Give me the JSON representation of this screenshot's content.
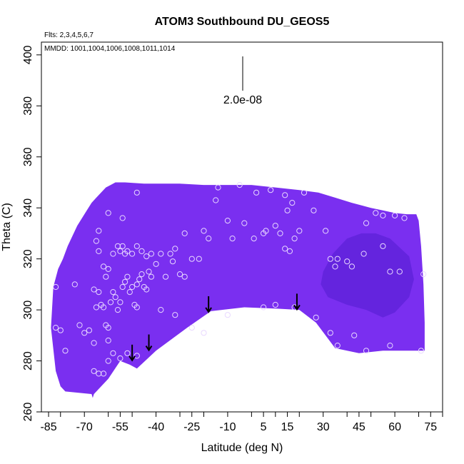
{
  "chart_data": {
    "type": "heatmap",
    "title": "ATOM3 Southbound DU_GEOS5",
    "flights_note": "Flts: 2,3,4,5,6,7",
    "dates_note": "MMDD: 1001,1004,1006,1008,1011,1014",
    "xlabel": "Latitude (deg N)",
    "ylabel": "Theta (C)",
    "xlim": [
      -88,
      80
    ],
    "ylim": [
      260,
      405
    ],
    "x_ticks": [
      -85,
      -70,
      -55,
      -40,
      -25,
      -10,
      5,
      15,
      30,
      45,
      60,
      75
    ],
    "y_ticks": [
      260,
      280,
      300,
      320,
      340,
      360,
      380,
      400
    ],
    "scale_bar_label": "2.0e-08",
    "grid": false,
    "colors": {
      "field_main": "#7a2ff0",
      "field_dark": "#5e22d8",
      "field_light": "#8a3ff5",
      "sample_marker": "#e8d8ff",
      "axis": "#000000"
    },
    "field_region": {
      "top": [
        [
          -83,
          309
        ],
        [
          -81,
          316
        ],
        [
          -79,
          320
        ],
        [
          -77,
          325
        ],
        [
          -75,
          329
        ],
        [
          -73,
          333
        ],
        [
          -71,
          336
        ],
        [
          -69,
          339
        ],
        [
          -67,
          342
        ],
        [
          -65,
          344
        ],
        [
          -63,
          346
        ],
        [
          -61,
          348
        ],
        [
          -59,
          349
        ],
        [
          -57,
          350
        ],
        [
          -53,
          350
        ],
        [
          -45,
          349.5
        ],
        [
          -30,
          349.5
        ],
        [
          -20,
          349
        ],
        [
          0,
          349
        ],
        [
          10,
          348
        ],
        [
          20,
          347
        ],
        [
          28,
          346
        ],
        [
          35,
          344
        ],
        [
          42,
          342
        ],
        [
          50,
          340
        ],
        [
          55,
          339
        ],
        [
          60,
          338
        ],
        [
          65,
          337.5
        ],
        [
          69,
          337.5
        ],
        [
          70,
          335
        ],
        [
          71,
          325
        ],
        [
          72,
          310
        ],
        [
          72.5,
          295
        ],
        [
          72.5,
          284
        ]
      ],
      "bottom": [
        [
          72.5,
          284
        ],
        [
          55,
          284
        ],
        [
          45,
          283
        ],
        [
          35,
          285
        ],
        [
          27,
          295
        ],
        [
          20,
          300
        ],
        [
          10,
          300.5
        ],
        [
          -3,
          301
        ],
        [
          -17,
          299.5
        ],
        [
          -27,
          293
        ],
        [
          -40,
          284
        ],
        [
          -48,
          277
        ],
        [
          -51,
          278.5
        ],
        [
          -55,
          280
        ],
        [
          -60,
          273
        ],
        [
          -66,
          267
        ],
        [
          -66.5,
          265.5
        ],
        [
          -67,
          267
        ],
        [
          -78,
          268
        ],
        [
          -80,
          270
        ],
        [
          -82,
          276
        ],
        [
          -84,
          293
        ],
        [
          -83,
          309
        ]
      ]
    },
    "dark_patch": [
      [
        30,
        315
      ],
      [
        34,
        322
      ],
      [
        40,
        328
      ],
      [
        46,
        330
      ],
      [
        52,
        330
      ],
      [
        58,
        328
      ],
      [
        66,
        321
      ],
      [
        68,
        312
      ],
      [
        66,
        305
      ],
      [
        60,
        299
      ],
      [
        55,
        297
      ],
      [
        48,
        300
      ],
      [
        40,
        302
      ],
      [
        32,
        305
      ],
      [
        29,
        310
      ]
    ],
    "samples": [
      [
        -82,
        293
      ],
      [
        -80,
        292
      ],
      [
        -78,
        284
      ],
      [
        -82,
        309
      ],
      [
        -74,
        310
      ],
      [
        -72,
        294
      ],
      [
        -70,
        291
      ],
      [
        -68,
        292
      ],
      [
        -66,
        287
      ],
      [
        -66,
        276
      ],
      [
        -64,
        275
      ],
      [
        -62,
        275
      ],
      [
        -60,
        280
      ],
      [
        -60,
        288
      ],
      [
        -58,
        283
      ],
      [
        -55,
        281
      ],
      [
        -52,
        283
      ],
      [
        -48,
        282
      ],
      [
        -66,
        308
      ],
      [
        -65,
        301
      ],
      [
        -64,
        307
      ],
      [
        -63,
        302
      ],
      [
        -62,
        301
      ],
      [
        -61,
        294
      ],
      [
        -60,
        293
      ],
      [
        -59,
        303
      ],
      [
        -58,
        307
      ],
      [
        -57,
        305
      ],
      [
        -56,
        300
      ],
      [
        -55,
        303
      ],
      [
        -54,
        309
      ],
      [
        -53,
        311
      ],
      [
        -52,
        313
      ],
      [
        -51,
        307
      ],
      [
        -50,
        309
      ],
      [
        -49,
        302
      ],
      [
        -48,
        310
      ],
      [
        -47,
        312
      ],
      [
        -46,
        314
      ],
      [
        -45,
        309
      ],
      [
        -44,
        308
      ],
      [
        -43,
        315
      ],
      [
        -42,
        313
      ],
      [
        -40,
        318
      ],
      [
        -38,
        322
      ],
      [
        -36,
        313
      ],
      [
        -34,
        322
      ],
      [
        -33,
        319
      ],
      [
        -32,
        324
      ],
      [
        -30,
        314
      ],
      [
        -28,
        313
      ],
      [
        -65,
        327
      ],
      [
        -64,
        323
      ],
      [
        -62,
        317
      ],
      [
        -61,
        313
      ],
      [
        -60,
        316
      ],
      [
        -58,
        322
      ],
      [
        -56,
        325
      ],
      [
        -55,
        323
      ],
      [
        -54,
        325
      ],
      [
        -53,
        322
      ],
      [
        -52,
        323
      ],
      [
        -50,
        322
      ],
      [
        -48,
        325
      ],
      [
        -46,
        323
      ],
      [
        -44,
        321
      ],
      [
        -42,
        322
      ],
      [
        -64,
        331
      ],
      [
        -60,
        338
      ],
      [
        -54,
        336
      ],
      [
        -48,
        346
      ],
      [
        -28,
        330
      ],
      [
        -25,
        320
      ],
      [
        -22,
        320
      ],
      [
        -20,
        331
      ],
      [
        -18,
        328
      ],
      [
        -15,
        343
      ],
      [
        -14,
        348
      ],
      [
        -10,
        335
      ],
      [
        -8,
        328
      ],
      [
        -5,
        349
      ],
      [
        -3,
        334
      ],
      [
        1,
        328
      ],
      [
        2,
        346
      ],
      [
        5,
        330
      ],
      [
        6,
        331
      ],
      [
        8,
        347
      ],
      [
        10,
        333
      ],
      [
        12,
        330
      ],
      [
        14,
        345
      ],
      [
        15,
        339
      ],
      [
        17,
        342
      ],
      [
        18,
        328
      ],
      [
        20,
        331
      ],
      [
        14,
        324
      ],
      [
        16,
        323
      ],
      [
        22,
        346
      ],
      [
        26,
        339
      ],
      [
        31,
        331
      ],
      [
        33,
        320
      ],
      [
        35,
        317
      ],
      [
        36,
        320
      ],
      [
        40,
        319
      ],
      [
        42,
        317
      ],
      [
        47,
        322
      ],
      [
        48,
        334
      ],
      [
        52,
        338
      ],
      [
        55,
        337
      ],
      [
        60,
        337
      ],
      [
        64,
        336
      ],
      [
        55,
        325
      ],
      [
        58,
        315
      ],
      [
        62,
        315
      ],
      [
        72,
        314
      ],
      [
        -48,
        301
      ],
      [
        -38,
        300
      ],
      [
        -32,
        298
      ],
      [
        -25,
        293
      ],
      [
        -20,
        291
      ],
      [
        -10,
        298
      ],
      [
        5,
        301
      ],
      [
        10,
        302
      ],
      [
        18,
        301
      ],
      [
        27,
        297
      ],
      [
        33,
        291
      ],
      [
        36,
        286
      ],
      [
        43,
        290
      ],
      [
        48,
        284
      ],
      [
        58,
        286
      ],
      [
        71,
        284
      ]
    ],
    "arrows": [
      [
        -50,
        283
      ],
      [
        -43,
        287
      ],
      [
        -18,
        302
      ],
      [
        19,
        303
      ]
    ]
  }
}
